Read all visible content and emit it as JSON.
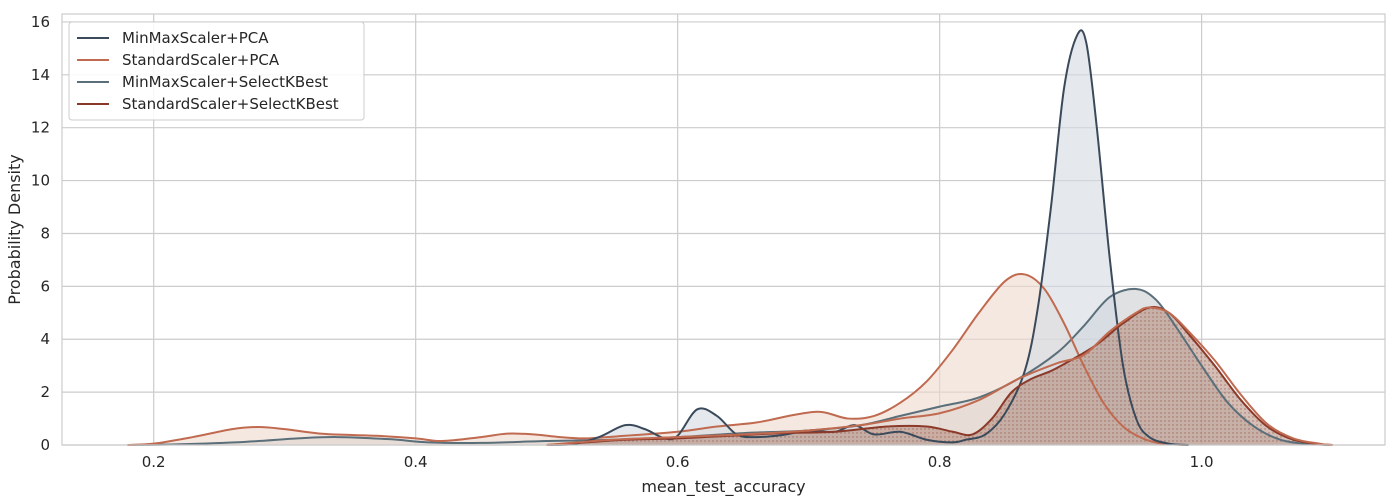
{
  "chart_data": {
    "type": "area",
    "xlabel": "mean_test_accuracy",
    "ylabel": "Probability Density",
    "xlim": [
      0.13,
      1.14
    ],
    "ylim": [
      0,
      16.3
    ],
    "grid": true,
    "legend_position": "top-left",
    "x_ticks": [
      {
        "value": 0.2,
        "label": "0.2"
      },
      {
        "value": 0.4,
        "label": "0.4"
      },
      {
        "value": 0.6,
        "label": "0.6"
      },
      {
        "value": 0.8,
        "label": "0.8"
      },
      {
        "value": 1.0,
        "label": "1.0"
      }
    ],
    "y_ticks": [
      {
        "value": 0,
        "label": "0"
      },
      {
        "value": 2,
        "label": "2"
      },
      {
        "value": 4,
        "label": "4"
      },
      {
        "value": 6,
        "label": "6"
      },
      {
        "value": 8,
        "label": "8"
      },
      {
        "value": 10,
        "label": "10"
      },
      {
        "value": 12,
        "label": "12"
      },
      {
        "value": 14,
        "label": "14"
      },
      {
        "value": 16,
        "label": "16"
      }
    ],
    "series": [
      {
        "name": "MinMaxScaler+PCA",
        "color": "#3a4a5a",
        "fill": "#d3dae3",
        "points": [
          [
            0.5,
            0
          ],
          [
            0.52,
            0.03
          ],
          [
            0.54,
            0.3
          ],
          [
            0.56,
            0.75
          ],
          [
            0.575,
            0.6
          ],
          [
            0.59,
            0.25
          ],
          [
            0.6,
            0.35
          ],
          [
            0.615,
            1.35
          ],
          [
            0.63,
            1.1
          ],
          [
            0.645,
            0.4
          ],
          [
            0.66,
            0.3
          ],
          [
            0.68,
            0.38
          ],
          [
            0.7,
            0.55
          ],
          [
            0.72,
            0.5
          ],
          [
            0.735,
            0.75
          ],
          [
            0.75,
            0.4
          ],
          [
            0.77,
            0.5
          ],
          [
            0.79,
            0.2
          ],
          [
            0.81,
            0.1
          ],
          [
            0.82,
            0.2
          ],
          [
            0.835,
            0.4
          ],
          [
            0.85,
            1.2
          ],
          [
            0.865,
            2.8
          ],
          [
            0.875,
            5.2
          ],
          [
            0.885,
            9.0
          ],
          [
            0.895,
            13.5
          ],
          [
            0.905,
            15.5
          ],
          [
            0.912,
            15.2
          ],
          [
            0.92,
            12.0
          ],
          [
            0.93,
            7.0
          ],
          [
            0.94,
            3.0
          ],
          [
            0.95,
            1.0
          ],
          [
            0.96,
            0.3
          ],
          [
            0.975,
            0.05
          ],
          [
            0.99,
            0
          ]
        ]
      },
      {
        "name": "StandardScaler+PCA",
        "color": "#c06a50",
        "fill": "#efd8cd",
        "points": [
          [
            0.18,
            0
          ],
          [
            0.2,
            0.05
          ],
          [
            0.23,
            0.3
          ],
          [
            0.26,
            0.6
          ],
          [
            0.28,
            0.68
          ],
          [
            0.3,
            0.6
          ],
          [
            0.33,
            0.42
          ],
          [
            0.37,
            0.35
          ],
          [
            0.4,
            0.25
          ],
          [
            0.42,
            0.15
          ],
          [
            0.45,
            0.3
          ],
          [
            0.47,
            0.43
          ],
          [
            0.49,
            0.4
          ],
          [
            0.51,
            0.3
          ],
          [
            0.53,
            0.25
          ],
          [
            0.56,
            0.35
          ],
          [
            0.6,
            0.5
          ],
          [
            0.63,
            0.7
          ],
          [
            0.66,
            0.85
          ],
          [
            0.69,
            1.15
          ],
          [
            0.71,
            1.25
          ],
          [
            0.73,
            1.0
          ],
          [
            0.75,
            1.1
          ],
          [
            0.77,
            1.6
          ],
          [
            0.79,
            2.4
          ],
          [
            0.81,
            3.6
          ],
          [
            0.83,
            5.0
          ],
          [
            0.85,
            6.2
          ],
          [
            0.865,
            6.45
          ],
          [
            0.88,
            5.9
          ],
          [
            0.895,
            4.6
          ],
          [
            0.91,
            3.0
          ],
          [
            0.925,
            1.6
          ],
          [
            0.94,
            0.7
          ],
          [
            0.955,
            0.25
          ],
          [
            0.97,
            0.05
          ],
          [
            0.99,
            0
          ]
        ]
      },
      {
        "name": "MinMaxScaler+SelectKBest",
        "color": "#5a6f7a",
        "fill": "#c9cdd0",
        "points": [
          [
            0.18,
            0
          ],
          [
            0.22,
            0.03
          ],
          [
            0.27,
            0.12
          ],
          [
            0.31,
            0.25
          ],
          [
            0.34,
            0.3
          ],
          [
            0.38,
            0.22
          ],
          [
            0.41,
            0.1
          ],
          [
            0.45,
            0.08
          ],
          [
            0.5,
            0.15
          ],
          [
            0.55,
            0.2
          ],
          [
            0.6,
            0.3
          ],
          [
            0.65,
            0.45
          ],
          [
            0.7,
            0.55
          ],
          [
            0.74,
            0.75
          ],
          [
            0.77,
            1.1
          ],
          [
            0.8,
            1.45
          ],
          [
            0.83,
            1.8
          ],
          [
            0.86,
            2.5
          ],
          [
            0.89,
            3.5
          ],
          [
            0.91,
            4.5
          ],
          [
            0.93,
            5.6
          ],
          [
            0.95,
            5.9
          ],
          [
            0.965,
            5.5
          ],
          [
            0.98,
            4.5
          ],
          [
            1.0,
            3.0
          ],
          [
            1.02,
            1.6
          ],
          [
            1.04,
            0.7
          ],
          [
            1.06,
            0.2
          ],
          [
            1.08,
            0.04
          ],
          [
            1.1,
            0
          ]
        ]
      },
      {
        "name": "StandardScaler+SelectKBest",
        "color": "#8b3a2a",
        "fill": "#b08878",
        "fill_pattern": "dotted",
        "points": [
          [
            0.5,
            0
          ],
          [
            0.53,
            0.1
          ],
          [
            0.56,
            0.2
          ],
          [
            0.6,
            0.25
          ],
          [
            0.64,
            0.35
          ],
          [
            0.68,
            0.45
          ],
          [
            0.72,
            0.5
          ],
          [
            0.76,
            0.7
          ],
          [
            0.79,
            0.7
          ],
          [
            0.81,
            0.5
          ],
          [
            0.825,
            0.4
          ],
          [
            0.84,
            1.0
          ],
          [
            0.855,
            2.0
          ],
          [
            0.87,
            2.5
          ],
          [
            0.885,
            2.8
          ],
          [
            0.9,
            3.2
          ],
          [
            0.92,
            3.8
          ],
          [
            0.94,
            4.6
          ],
          [
            0.96,
            5.2
          ],
          [
            0.975,
            5.0
          ],
          [
            0.99,
            4.2
          ],
          [
            1.01,
            3.0
          ],
          [
            1.03,
            1.7
          ],
          [
            1.05,
            0.7
          ],
          [
            1.07,
            0.2
          ],
          [
            1.09,
            0.03
          ],
          [
            1.1,
            0
          ]
        ]
      }
    ],
    "outline_series": [
      {
        "name": "",
        "color": "#c06a50",
        "points": [
          [
            0.5,
            0
          ],
          [
            0.55,
            0.2
          ],
          [
            0.6,
            0.3
          ],
          [
            0.65,
            0.4
          ],
          [
            0.7,
            0.55
          ],
          [
            0.74,
            0.75
          ],
          [
            0.77,
            1.0
          ],
          [
            0.8,
            1.2
          ],
          [
            0.83,
            1.7
          ],
          [
            0.86,
            2.5
          ],
          [
            0.89,
            3.1
          ],
          [
            0.91,
            3.4
          ],
          [
            0.93,
            4.3
          ],
          [
            0.95,
            5.0
          ],
          [
            0.96,
            5.2
          ],
          [
            0.975,
            5.0
          ],
          [
            0.99,
            4.3
          ],
          [
            1.01,
            3.2
          ],
          [
            1.03,
            1.9
          ],
          [
            1.05,
            0.8
          ],
          [
            1.07,
            0.25
          ],
          [
            1.09,
            0.05
          ],
          [
            1.1,
            0
          ]
        ]
      }
    ]
  }
}
